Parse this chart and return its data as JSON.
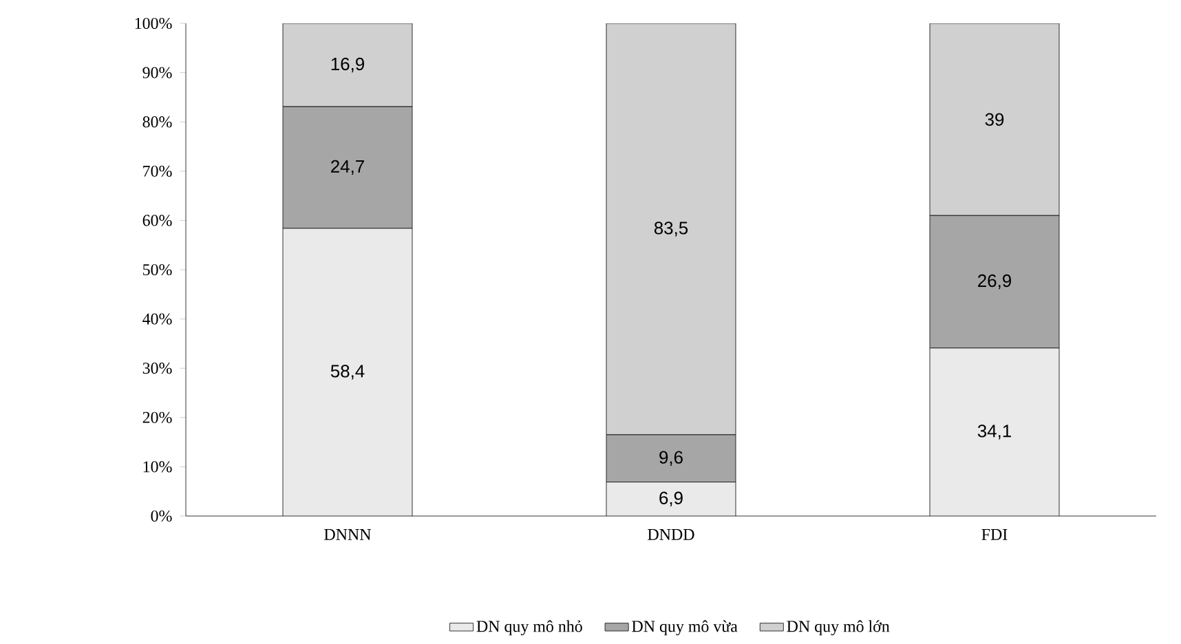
{
  "chart_data": {
    "type": "bar",
    "stacked": true,
    "categories": [
      "DNNN",
      "DNDD",
      "FDI"
    ],
    "series": [
      {
        "name": "DN quy mô nhỏ",
        "color": "#eaeaea",
        "values": [
          58.4,
          6.9,
          34.1
        ],
        "value_labels": [
          "58,4",
          "6,9",
          "34,1"
        ]
      },
      {
        "name": "DN quy mô vừa",
        "color": "#a6a6a6",
        "values": [
          24.7,
          9.6,
          26.9
        ],
        "value_labels": [
          "24,7",
          "9,6",
          "26,9"
        ]
      },
      {
        "name": "DN quy mô lớn",
        "color": "#d0d0d0",
        "values": [
          16.9,
          83.5,
          39
        ],
        "value_labels": [
          "16,9",
          "83,5",
          "39"
        ]
      }
    ],
    "ylim": [
      0,
      100
    ],
    "yticks": [
      {
        "value": 0,
        "label": "0%"
      },
      {
        "value": 10,
        "label": "10%"
      },
      {
        "value": 20,
        "label": "20%"
      },
      {
        "value": 30,
        "label": "30%"
      },
      {
        "value": 40,
        "label": "40%"
      },
      {
        "value": 50,
        "label": "50%"
      },
      {
        "value": 60,
        "label": "60%"
      },
      {
        "value": 70,
        "label": "70%"
      },
      {
        "value": 80,
        "label": "80%"
      },
      {
        "value": 90,
        "label": "90%"
      },
      {
        "value": 100,
        "label": "100%"
      }
    ],
    "grid": false,
    "legend": "bottom"
  }
}
